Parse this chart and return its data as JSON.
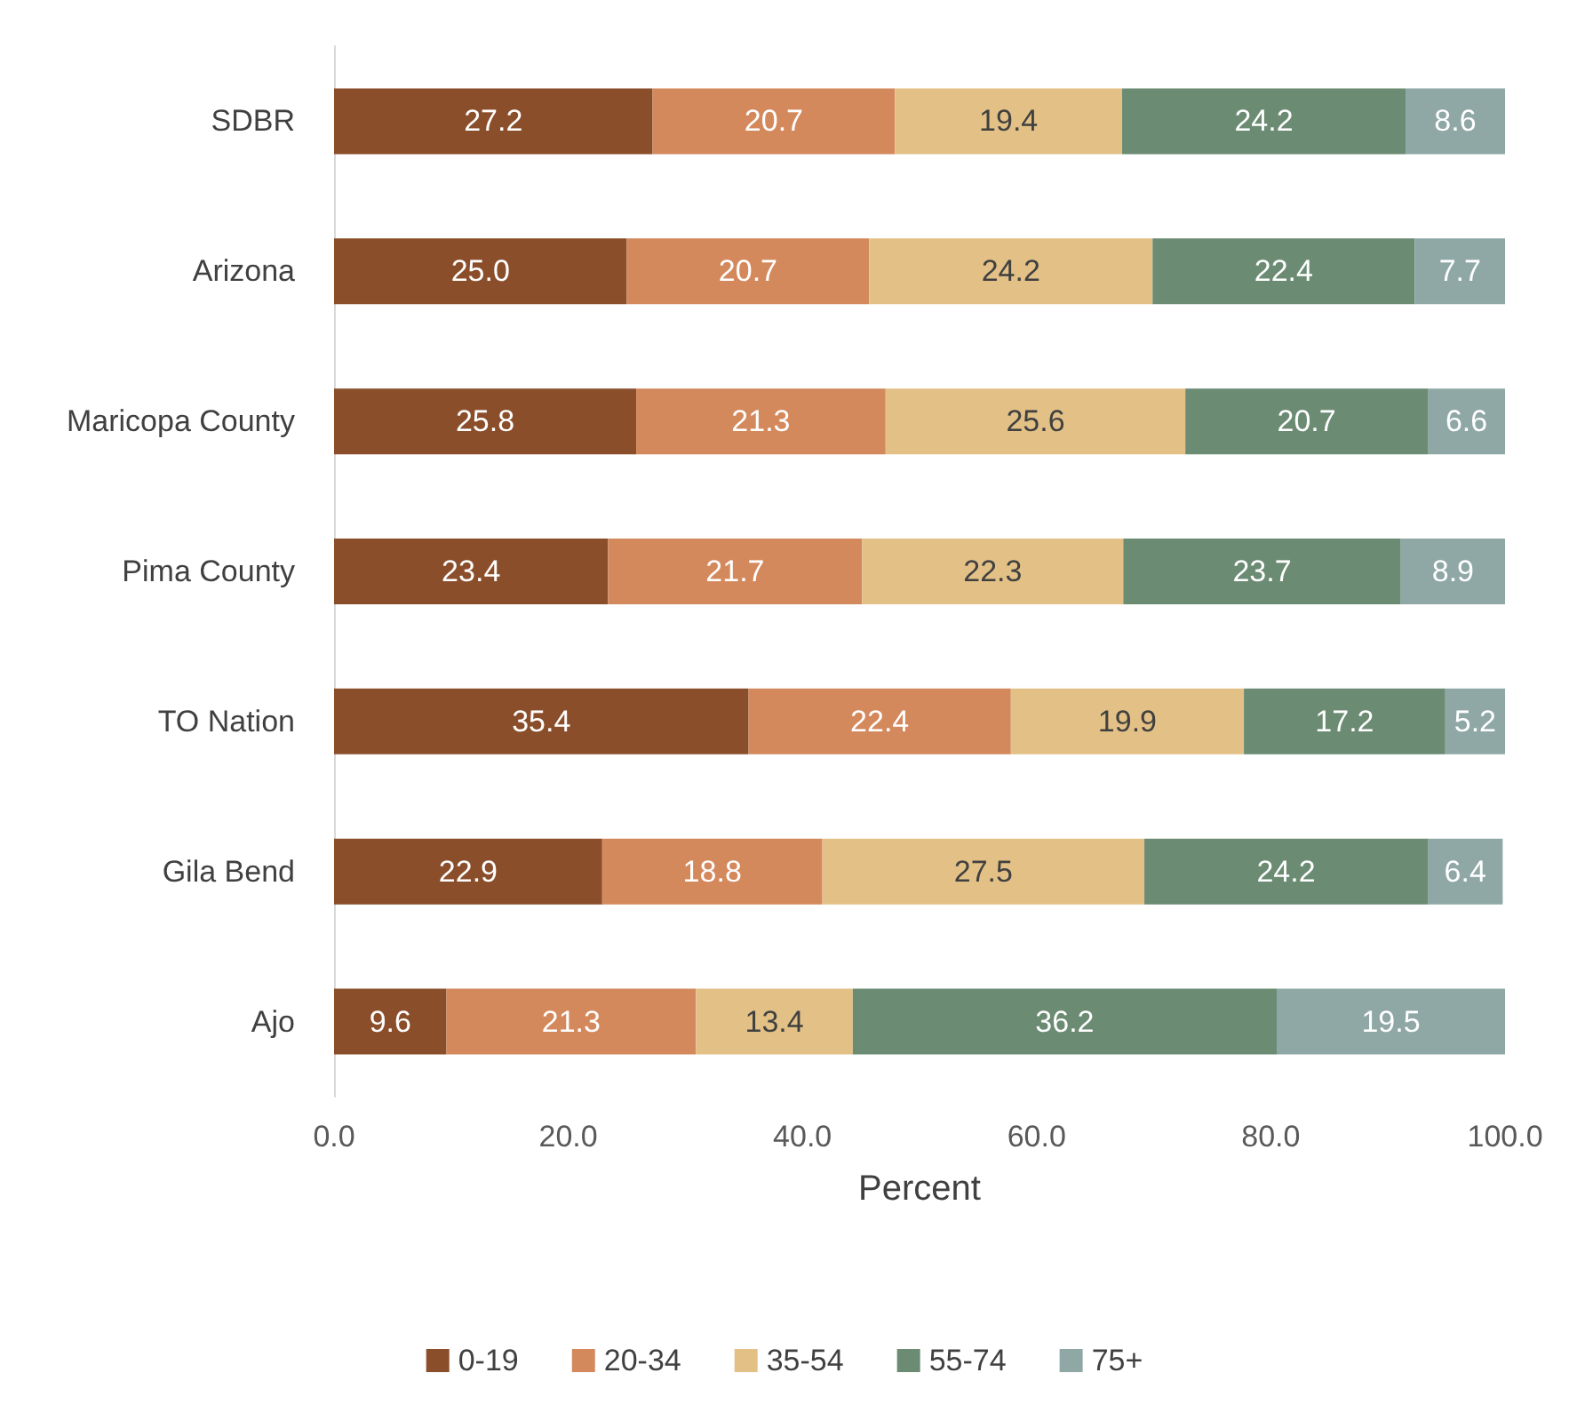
{
  "chart_data": {
    "type": "bar",
    "orientation": "horizontal",
    "stacked": true,
    "xlabel": "Percent",
    "categories": [
      "SDBR",
      "Arizona",
      "Maricopa County",
      "Pima County",
      "TO Nation",
      "Gila Bend",
      "Ajo"
    ],
    "series": [
      {
        "name": "0-19",
        "color": "#8b4e2b",
        "values": [
          27.2,
          25.0,
          25.8,
          23.4,
          35.4,
          22.9,
          9.6
        ],
        "value_labels": [
          "27.2",
          "25.0",
          "25.8",
          "23.4",
          "35.4",
          "22.9",
          "9.6"
        ]
      },
      {
        "name": "20-34",
        "color": "#d4895d",
        "values": [
          20.7,
          20.7,
          21.3,
          21.7,
          22.4,
          18.8,
          21.3
        ],
        "value_labels": [
          "20.7",
          "20.7",
          "21.3",
          "21.7",
          "22.4",
          "18.8",
          "21.3"
        ]
      },
      {
        "name": "35-54",
        "color": "#e3c186",
        "values": [
          19.4,
          24.2,
          25.6,
          22.3,
          19.9,
          27.5,
          13.4
        ],
        "value_labels": [
          "19.4",
          "24.2",
          "25.6",
          "22.3",
          "19.9",
          "27.5",
          "13.4"
        ]
      },
      {
        "name": "55-74",
        "color": "#6b8b73",
        "values": [
          24.2,
          22.4,
          20.7,
          23.7,
          17.2,
          24.2,
          36.2
        ],
        "value_labels": [
          "24.2",
          "22.4",
          "20.7",
          "23.7",
          "17.2",
          "24.2",
          "36.2"
        ]
      },
      {
        "name": "75+",
        "color": "#8fa8a6",
        "values": [
          8.6,
          7.7,
          6.6,
          8.9,
          5.2,
          6.4,
          19.5
        ],
        "value_labels": [
          "8.6",
          "7.7",
          "6.6",
          "8.9",
          "5.2",
          "6.4",
          "19.5"
        ]
      }
    ],
    "xlim": [
      0,
      100
    ],
    "xticks": [
      {
        "value": 0,
        "label": "0.0"
      },
      {
        "value": 20,
        "label": "20.0"
      },
      {
        "value": 40,
        "label": "40.0"
      },
      {
        "value": 60,
        "label": "60.0"
      },
      {
        "value": 80,
        "label": "80.0"
      },
      {
        "value": 100,
        "label": "100.0"
      }
    ],
    "grid": false,
    "legend": "bottom"
  }
}
